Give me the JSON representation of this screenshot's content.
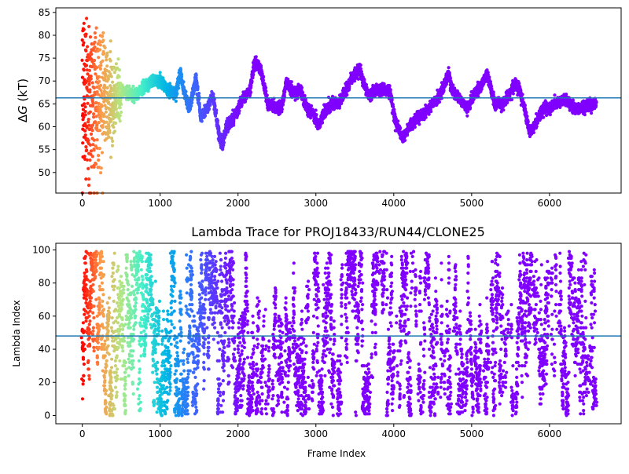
{
  "chart_data": [
    {
      "type": "scatter",
      "title": "",
      "xlabel": "",
      "ylabel": "ΔG (kT)",
      "ylabel_parts": [
        "Δ",
        "G",
        " (kT)"
      ],
      "xlim": [
        -340,
        6920
      ],
      "ylim": [
        45.5,
        86
      ],
      "xticks": [
        0,
        1000,
        2000,
        3000,
        4000,
        5000,
        6000
      ],
      "yticks": [
        50,
        55,
        60,
        65,
        70,
        75,
        80,
        85
      ],
      "reference_line": {
        "y": 66.3,
        "color": "#1f77b4"
      },
      "colormap": "rainbow (late frames violet, early frames red)",
      "n_points": 6600,
      "trace_anchors": [
        [
          0,
          66
        ],
        [
          60,
          70
        ],
        [
          120,
          67
        ],
        [
          200,
          67
        ],
        [
          300,
          68
        ],
        [
          400,
          67
        ],
        [
          500,
          68
        ],
        [
          600,
          67
        ],
        [
          700,
          67
        ],
        [
          800,
          69
        ],
        [
          900,
          70
        ],
        [
          1000,
          70
        ],
        [
          1100,
          68
        ],
        [
          1200,
          67
        ],
        [
          1260,
          72
        ],
        [
          1300,
          68
        ],
        [
          1380,
          64
        ],
        [
          1460,
          71
        ],
        [
          1520,
          62
        ],
        [
          1600,
          64
        ],
        [
          1680,
          67
        ],
        [
          1760,
          58
        ],
        [
          1800,
          55.5
        ],
        [
          1850,
          60
        ],
        [
          1950,
          62
        ],
        [
          2050,
          66
        ],
        [
          2150,
          68
        ],
        [
          2220,
          74.5
        ],
        [
          2300,
          72
        ],
        [
          2380,
          65
        ],
        [
          2450,
          64.5
        ],
        [
          2520,
          64
        ],
        [
          2560,
          64
        ],
        [
          2620,
          70
        ],
        [
          2700,
          67.5
        ],
        [
          2800,
          68
        ],
        [
          2880,
          64
        ],
        [
          2960,
          63
        ],
        [
          3030,
          60
        ],
        [
          3100,
          63
        ],
        [
          3200,
          65
        ],
        [
          3300,
          65.5
        ],
        [
          3350,
          67
        ],
        [
          3450,
          70
        ],
        [
          3530,
          72
        ],
        [
          3560,
          72.5
        ],
        [
          3620,
          69
        ],
        [
          3680,
          67
        ],
        [
          3760,
          68
        ],
        [
          3850,
          68
        ],
        [
          3950,
          68
        ],
        [
          4020,
          61
        ],
        [
          4120,
          57.5
        ],
        [
          4200,
          60
        ],
        [
          4300,
          62
        ],
        [
          4400,
          63
        ],
        [
          4500,
          65
        ],
        [
          4600,
          67
        ],
        [
          4700,
          71.5
        ],
        [
          4750,
          68
        ],
        [
          4850,
          66
        ],
        [
          4950,
          64
        ],
        [
          5030,
          67
        ],
        [
          5120,
          69
        ],
        [
          5200,
          71.5
        ],
        [
          5250,
          68
        ],
        [
          5300,
          65
        ],
        [
          5400,
          65
        ],
        [
          5500,
          67.5
        ],
        [
          5560,
          69.5
        ],
        [
          5620,
          68
        ],
        [
          5680,
          64
        ],
        [
          5740,
          59
        ],
        [
          5800,
          60
        ],
        [
          5900,
          63.5
        ],
        [
          6000,
          64
        ],
        [
          6100,
          65
        ],
        [
          6200,
          66
        ],
        [
          6250,
          65
        ],
        [
          6300,
          64
        ],
        [
          6400,
          64
        ],
        [
          6500,
          64.5
        ],
        [
          6580,
          65
        ]
      ],
      "early_scatter_note": "frames 0-500 show wide spread between ~48 and ~85"
    },
    {
      "type": "scatter",
      "title": "Lambda Trace for PROJ18433/RUN44/CLONE25",
      "xlabel": "Frame Index",
      "ylabel": "Lambda Index",
      "xlim": [
        -340,
        6920
      ],
      "ylim": [
        -5,
        104
      ],
      "xticks": [
        0,
        1000,
        2000,
        3000,
        4000,
        5000,
        6000
      ],
      "yticks": [
        0,
        20,
        40,
        60,
        80,
        100
      ],
      "reference_line": {
        "y": 48,
        "color": "#1f77b4"
      },
      "colormap": "rainbow (late frames violet, early frames red)",
      "n_points": 6600,
      "value_range": [
        0,
        99
      ]
    }
  ]
}
